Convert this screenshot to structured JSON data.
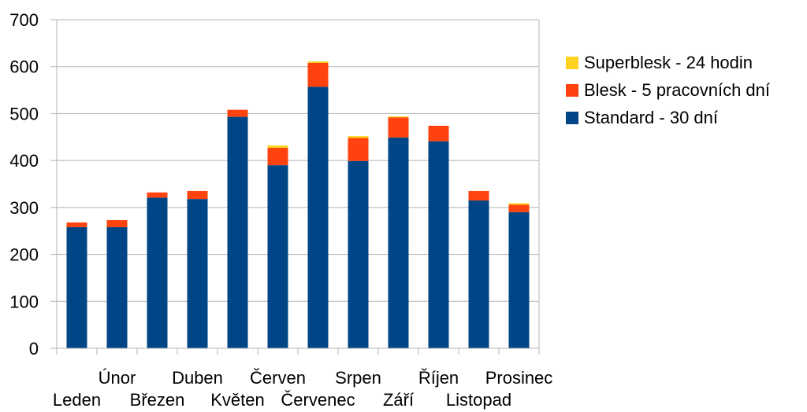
{
  "chart_data": {
    "type": "bar",
    "stacked": true,
    "categories": [
      "Leden",
      "Únor",
      "Březen",
      "Duben",
      "Květen",
      "Červen",
      "Červenec",
      "Srpen",
      "Září",
      "Říjen",
      "Listopad",
      "Prosinec"
    ],
    "series": [
      {
        "name": "Standard - 30 dní",
        "color": "#004586",
        "values": [
          258,
          258,
          321,
          318,
          493,
          390,
          557,
          399,
          449,
          441,
          315,
          290
        ]
      },
      {
        "name": "Blesk - 5 pracovních dní",
        "color": "#ff420e",
        "values": [
          10,
          15,
          11,
          17,
          15,
          37,
          51,
          49,
          43,
          33,
          20,
          16
        ]
      },
      {
        "name": "Superblesk - 24 hodin",
        "color": "#ffd320",
        "values": [
          0,
          0,
          0,
          0,
          0,
          5,
          3,
          4,
          2,
          0,
          0,
          3
        ]
      }
    ],
    "legend_order": [
      "Superblesk - 24 hodin",
      "Blesk - 5 pracovních dní",
      "Standard - 30 dní"
    ],
    "yticks": [
      0,
      100,
      200,
      300,
      400,
      500,
      600,
      700
    ],
    "ylim": [
      0,
      700
    ],
    "grid": true,
    "legend": "right"
  }
}
